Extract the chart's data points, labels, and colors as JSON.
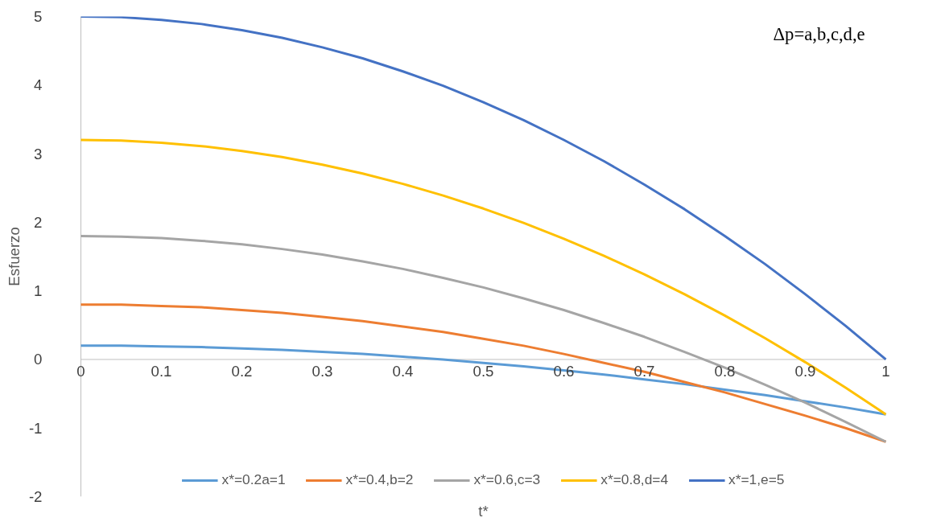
{
  "chart_data": {
    "type": "line",
    "xlabel": "t*",
    "ylabel": "Esfuerzo",
    "annotations": [
      "Δp=a,b,c,d,e"
    ],
    "x": [
      0,
      0.05,
      0.1,
      0.15,
      0.2,
      0.25,
      0.3,
      0.35,
      0.4,
      0.45,
      0.5,
      0.55,
      0.6,
      0.65,
      0.7,
      0.75,
      0.8,
      0.85,
      0.9,
      0.95,
      1
    ],
    "xlim": [
      0,
      1
    ],
    "ylim": [
      -2,
      5
    ],
    "xticks": [
      0,
      0.1,
      0.2,
      0.3,
      0.4,
      0.5,
      0.6,
      0.7,
      0.8,
      0.9,
      1
    ],
    "yticks": [
      -2,
      -1,
      0,
      1,
      2,
      3,
      4,
      5
    ],
    "grid": false,
    "legend": "bottom",
    "marker": "none",
    "line_style": "solid",
    "series": [
      {
        "name": "x*=0.2a=1",
        "color": "#5b9bd5",
        "values": [
          0.2,
          0.2,
          0.19,
          0.18,
          0.16,
          0.14,
          0.11,
          0.08,
          0.04,
          0,
          -0.05,
          -0.1,
          -0.16,
          -0.22,
          -0.29,
          -0.36,
          -0.44,
          -0.52,
          -0.61,
          -0.7,
          -0.8
        ]
      },
      {
        "name": "x*=0.4,b=2",
        "color": "#ed7d31",
        "values": [
          0.8,
          0.8,
          0.78,
          0.76,
          0.72,
          0.68,
          0.62,
          0.56,
          0.48,
          0.4,
          0.3,
          0.2,
          0.08,
          -0.05,
          -0.18,
          -0.33,
          -0.48,
          -0.65,
          -0.82,
          -1.0,
          -1.2
        ]
      },
      {
        "name": "x*=0.6,c=3",
        "color": "#a5a5a5",
        "values": [
          1.8,
          1.79,
          1.77,
          1.73,
          1.68,
          1.61,
          1.53,
          1.43,
          1.32,
          1.19,
          1.05,
          0.89,
          0.72,
          0.53,
          0.33,
          0.11,
          -0.12,
          -0.37,
          -0.63,
          -0.91,
          -1.2
        ]
      },
      {
        "name": "x*=0.8,d=4",
        "color": "#ffc000",
        "values": [
          3.2,
          3.19,
          3.16,
          3.11,
          3.04,
          2.95,
          2.84,
          2.71,
          2.56,
          2.39,
          2.2,
          1.99,
          1.76,
          1.51,
          1.24,
          0.95,
          0.64,
          0.31,
          -0.04,
          -0.41,
          -0.8
        ]
      },
      {
        "name": "x*=1,e=5",
        "color": "#4472c4",
        "values": [
          5,
          4.99,
          4.95,
          4.89,
          4.8,
          4.69,
          4.55,
          4.39,
          4.2,
          3.99,
          3.75,
          3.49,
          3.2,
          2.89,
          2.55,
          2.19,
          1.8,
          1.39,
          0.95,
          0.49,
          0
        ]
      }
    ]
  }
}
